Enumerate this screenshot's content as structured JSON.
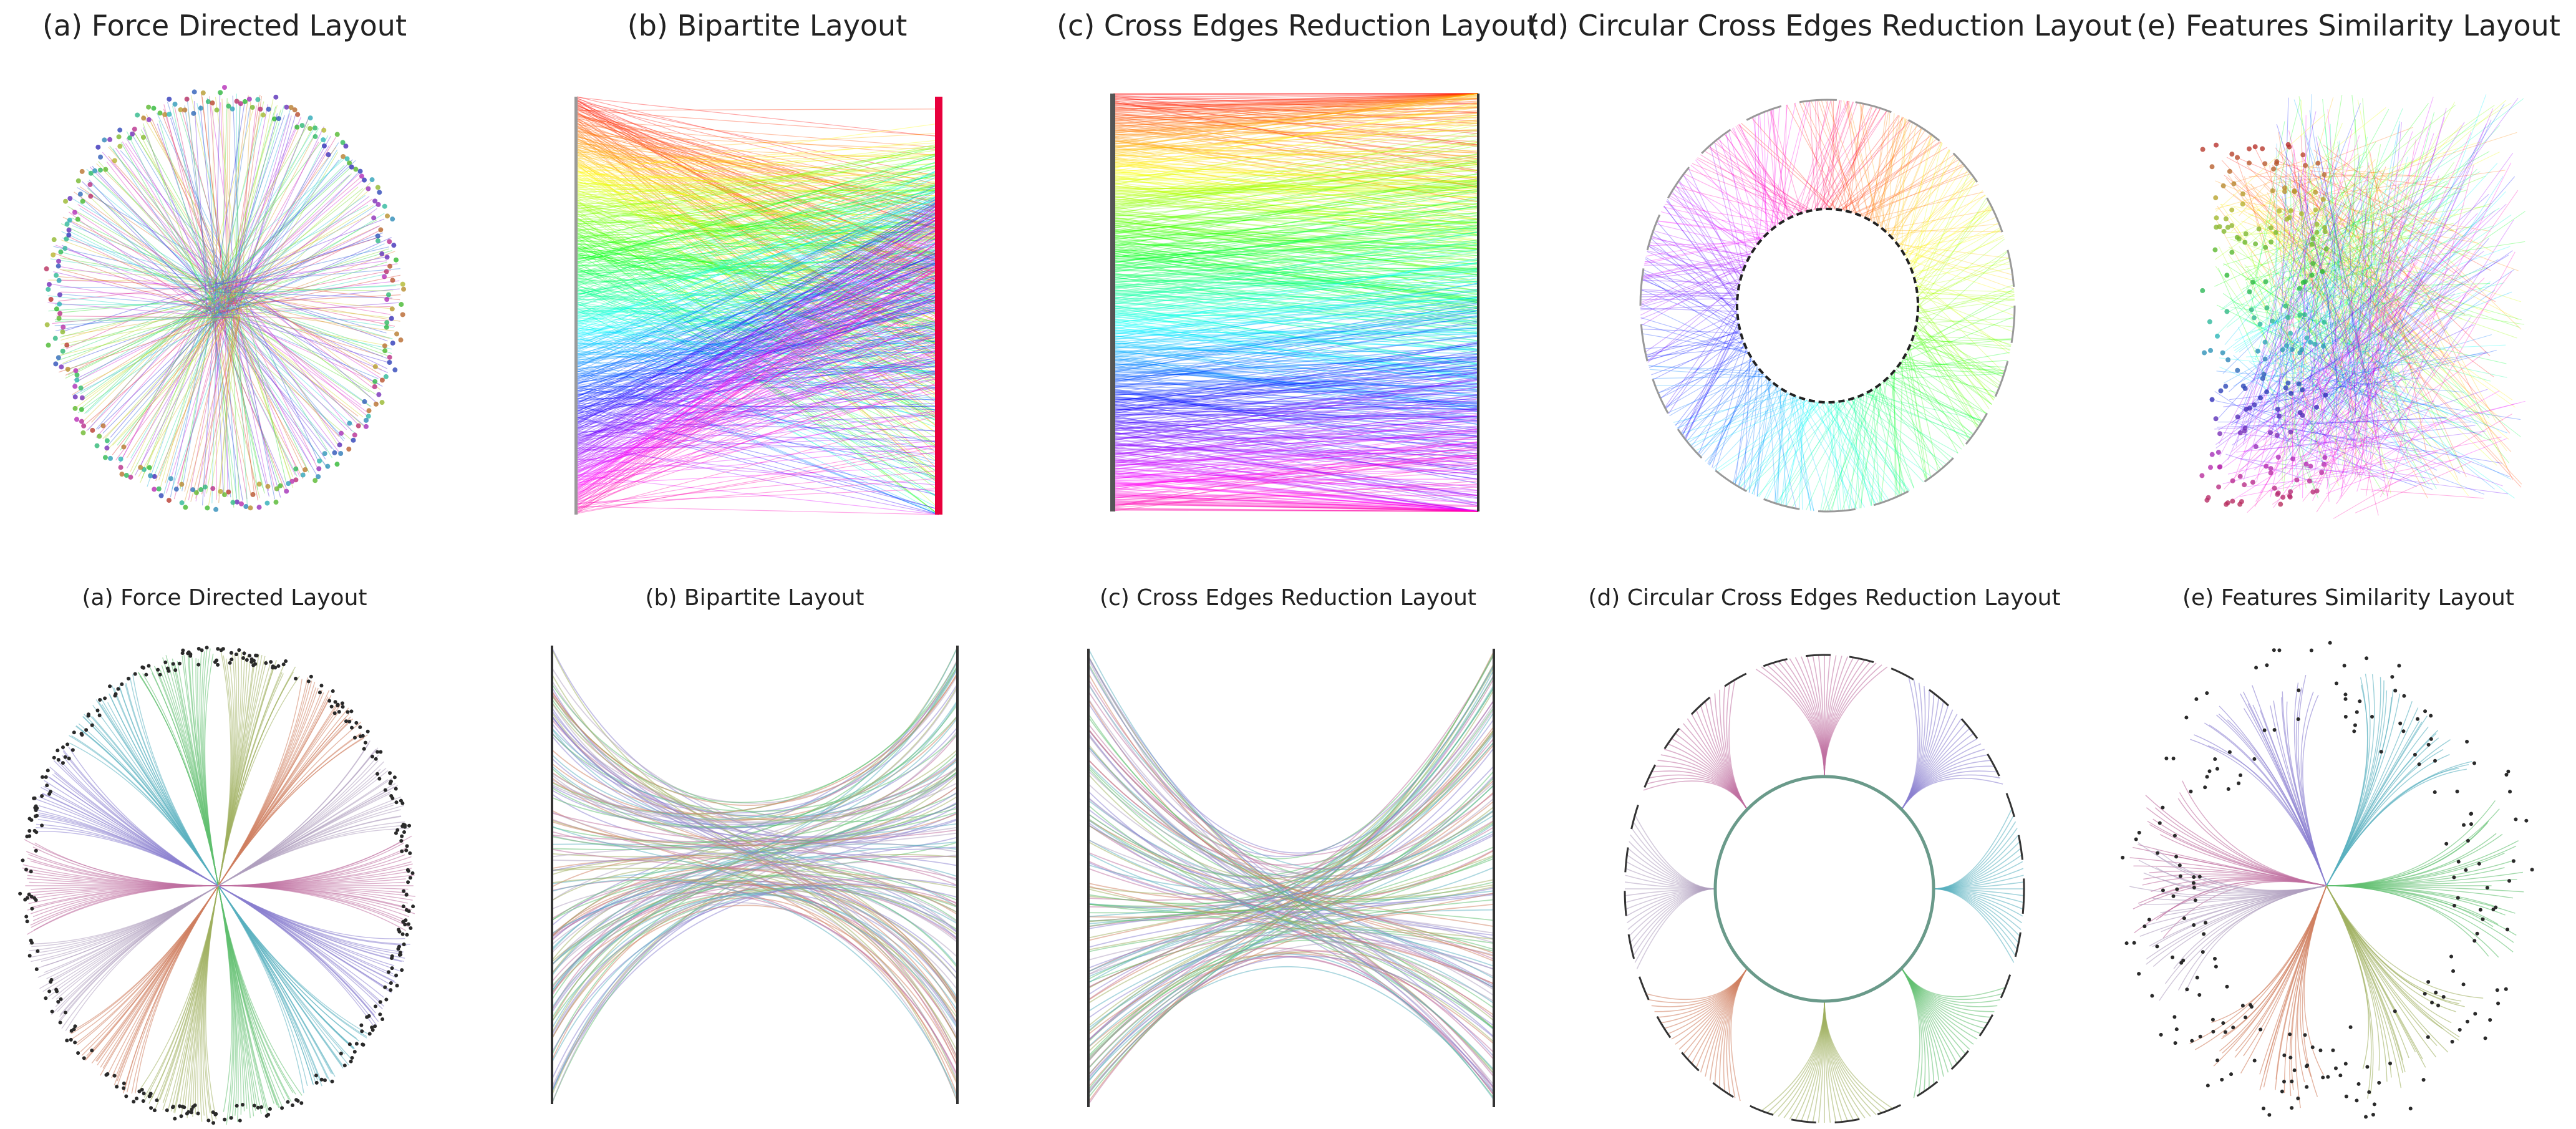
{
  "figure": {
    "top_row": {
      "titles": [
        "(a) Force Directed Layout",
        "(b) Bipartite Layout",
        "(c) Cross Edges Reduction Layout",
        "(d) Circular Cross Edges Reduction Layout",
        "(e) Features Similarity Layout"
      ]
    },
    "bottom_row": {
      "titles": [
        "(a) Force Directed Layout",
        "(b) Bipartite Layout",
        "(c) Cross Edges Reduction Layout",
        "(d) Circular Cross Edges Reduction Layout",
        "(e) Features Similarity Layout"
      ]
    }
  },
  "colors": {
    "rainbow": [
      "#ff0040",
      "#ff00ff",
      "#0000ff",
      "#00ffff",
      "#00ff00",
      "#ffff00",
      "#ff8000",
      "#ff0000"
    ],
    "bundled": [
      "#c070a0",
      "#8a7fd0",
      "#5ab0c0",
      "#60c070",
      "#a0b060",
      "#d08060",
      "#b0a0c0"
    ],
    "node": "#2a2a2a"
  }
}
